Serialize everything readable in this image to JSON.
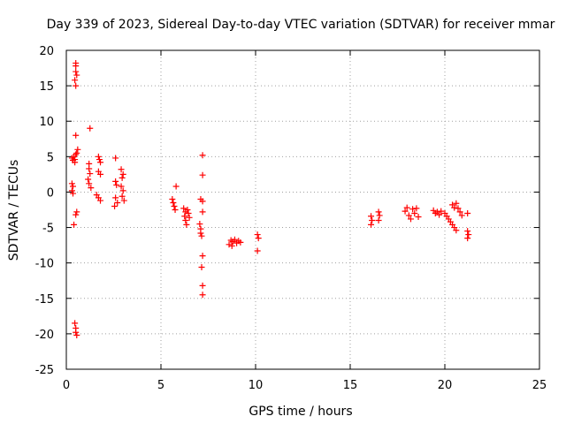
{
  "chart_data": {
    "type": "scatter",
    "title": "Day 339 of 2023, Sidereal Day-to-day VTEC variation (SDTVAR) for receiver mmar",
    "xlabel": "GPS time / hours",
    "ylabel": "SDTVAR / TECUs",
    "xlim": [
      0,
      25
    ],
    "ylim": [
      -25,
      20
    ],
    "xticks": [
      0,
      5,
      10,
      15,
      20,
      25
    ],
    "yticks": [
      -25,
      -20,
      -15,
      -10,
      -5,
      0,
      5,
      10,
      15,
      20
    ],
    "grid": true,
    "marker": "+",
    "color": "#ff0000",
    "series": [
      {
        "name": "SDTVAR",
        "points": [
          [
            0.3,
            4.8
          ],
          [
            0.35,
            4.5
          ],
          [
            0.4,
            5.0
          ],
          [
            0.45,
            4.6
          ],
          [
            0.5,
            5.3
          ],
          [
            0.55,
            5.5
          ],
          [
            0.6,
            6.0
          ],
          [
            0.45,
            4.2
          ],
          [
            0.5,
            8.0
          ],
          [
            0.5,
            15.0
          ],
          [
            0.45,
            15.8
          ],
          [
            0.55,
            16.5
          ],
          [
            0.5,
            17.0
          ],
          [
            0.5,
            17.8
          ],
          [
            0.5,
            18.2
          ],
          [
            0.3,
            1.2
          ],
          [
            0.35,
            0.8
          ],
          [
            0.3,
            0.2
          ],
          [
            0.35,
            -0.2
          ],
          [
            0.4,
            -4.6
          ],
          [
            0.5,
            -3.2
          ],
          [
            0.55,
            -2.8
          ],
          [
            0.45,
            -18.5
          ],
          [
            0.5,
            -19.2
          ],
          [
            0.5,
            -19.8
          ],
          [
            0.55,
            -20.2
          ],
          [
            1.2,
            4.0
          ],
          [
            1.2,
            3.3
          ],
          [
            1.25,
            2.6
          ],
          [
            1.15,
            1.8
          ],
          [
            1.2,
            1.2
          ],
          [
            1.3,
            0.6
          ],
          [
            1.25,
            9.0
          ],
          [
            1.7,
            5.0
          ],
          [
            1.75,
            4.6
          ],
          [
            1.8,
            4.2
          ],
          [
            1.7,
            2.9
          ],
          [
            1.8,
            2.5
          ],
          [
            1.6,
            -0.4
          ],
          [
            1.7,
            -0.8
          ],
          [
            1.8,
            -1.2
          ],
          [
            2.6,
            4.8
          ],
          [
            2.6,
            1.5
          ],
          [
            2.65,
            1.0
          ],
          [
            2.6,
            -0.8
          ],
          [
            2.7,
            -1.5
          ],
          [
            2.55,
            -2.0
          ],
          [
            2.9,
            3.2
          ],
          [
            3.0,
            2.5
          ],
          [
            2.95,
            2.0
          ],
          [
            2.9,
            0.8
          ],
          [
            3.0,
            0.2
          ],
          [
            2.95,
            -0.6
          ],
          [
            3.05,
            -1.2
          ],
          [
            5.6,
            -1.0
          ],
          [
            5.65,
            -1.5
          ],
          [
            5.7,
            -2.0
          ],
          [
            5.75,
            -2.5
          ],
          [
            5.8,
            0.8
          ],
          [
            6.2,
            -2.3
          ],
          [
            6.3,
            -2.8
          ],
          [
            6.25,
            -3.4
          ],
          [
            6.3,
            -4.0
          ],
          [
            6.35,
            -4.6
          ],
          [
            6.4,
            -2.5
          ],
          [
            6.45,
            -3.0
          ],
          [
            6.5,
            -3.6
          ],
          [
            7.05,
            -4.5
          ],
          [
            7.1,
            -5.2
          ],
          [
            7.1,
            -5.8
          ],
          [
            7.15,
            -6.2
          ],
          [
            7.1,
            -1.0
          ],
          [
            7.2,
            -1.3
          ],
          [
            7.2,
            -2.8
          ],
          [
            7.2,
            5.2
          ],
          [
            7.2,
            2.4
          ],
          [
            7.2,
            -9.0
          ],
          [
            7.15,
            -10.6
          ],
          [
            7.2,
            -13.2
          ],
          [
            7.2,
            -14.5
          ],
          [
            8.6,
            -7.4
          ],
          [
            8.7,
            -6.8
          ],
          [
            8.8,
            -7.0
          ],
          [
            8.9,
            -6.7
          ],
          [
            9.0,
            -7.2
          ],
          [
            9.1,
            -6.9
          ],
          [
            9.2,
            -7.1
          ],
          [
            8.75,
            -7.6
          ],
          [
            10.1,
            -6.0
          ],
          [
            10.15,
            -6.5
          ],
          [
            10.1,
            -8.3
          ],
          [
            16.1,
            -3.4
          ],
          [
            16.15,
            -4.0
          ],
          [
            16.1,
            -4.6
          ],
          [
            16.5,
            -2.8
          ],
          [
            16.55,
            -3.3
          ],
          [
            16.5,
            -4.0
          ],
          [
            17.9,
            -2.7
          ],
          [
            18.0,
            -2.2
          ],
          [
            18.1,
            -3.3
          ],
          [
            18.2,
            -3.8
          ],
          [
            18.3,
            -2.4
          ],
          [
            18.4,
            -3.0
          ],
          [
            18.5,
            -2.3
          ],
          [
            18.6,
            -3.5
          ],
          [
            19.4,
            -2.6
          ],
          [
            19.5,
            -3.0
          ],
          [
            19.6,
            -2.8
          ],
          [
            19.7,
            -3.2
          ],
          [
            19.8,
            -2.7
          ],
          [
            20.0,
            -3.0
          ],
          [
            20.1,
            -3.4
          ],
          [
            20.2,
            -3.8
          ],
          [
            20.3,
            -4.2
          ],
          [
            20.4,
            -4.6
          ],
          [
            20.5,
            -5.0
          ],
          [
            20.6,
            -5.4
          ],
          [
            20.4,
            -1.8
          ],
          [
            20.5,
            -2.2
          ],
          [
            20.6,
            -1.6
          ],
          [
            20.7,
            -2.3
          ],
          [
            20.8,
            -2.8
          ],
          [
            20.9,
            -3.3
          ],
          [
            21.2,
            -3.0
          ],
          [
            21.2,
            -5.5
          ],
          [
            21.25,
            -6.0
          ],
          [
            21.2,
            -6.5
          ]
        ]
      }
    ]
  }
}
